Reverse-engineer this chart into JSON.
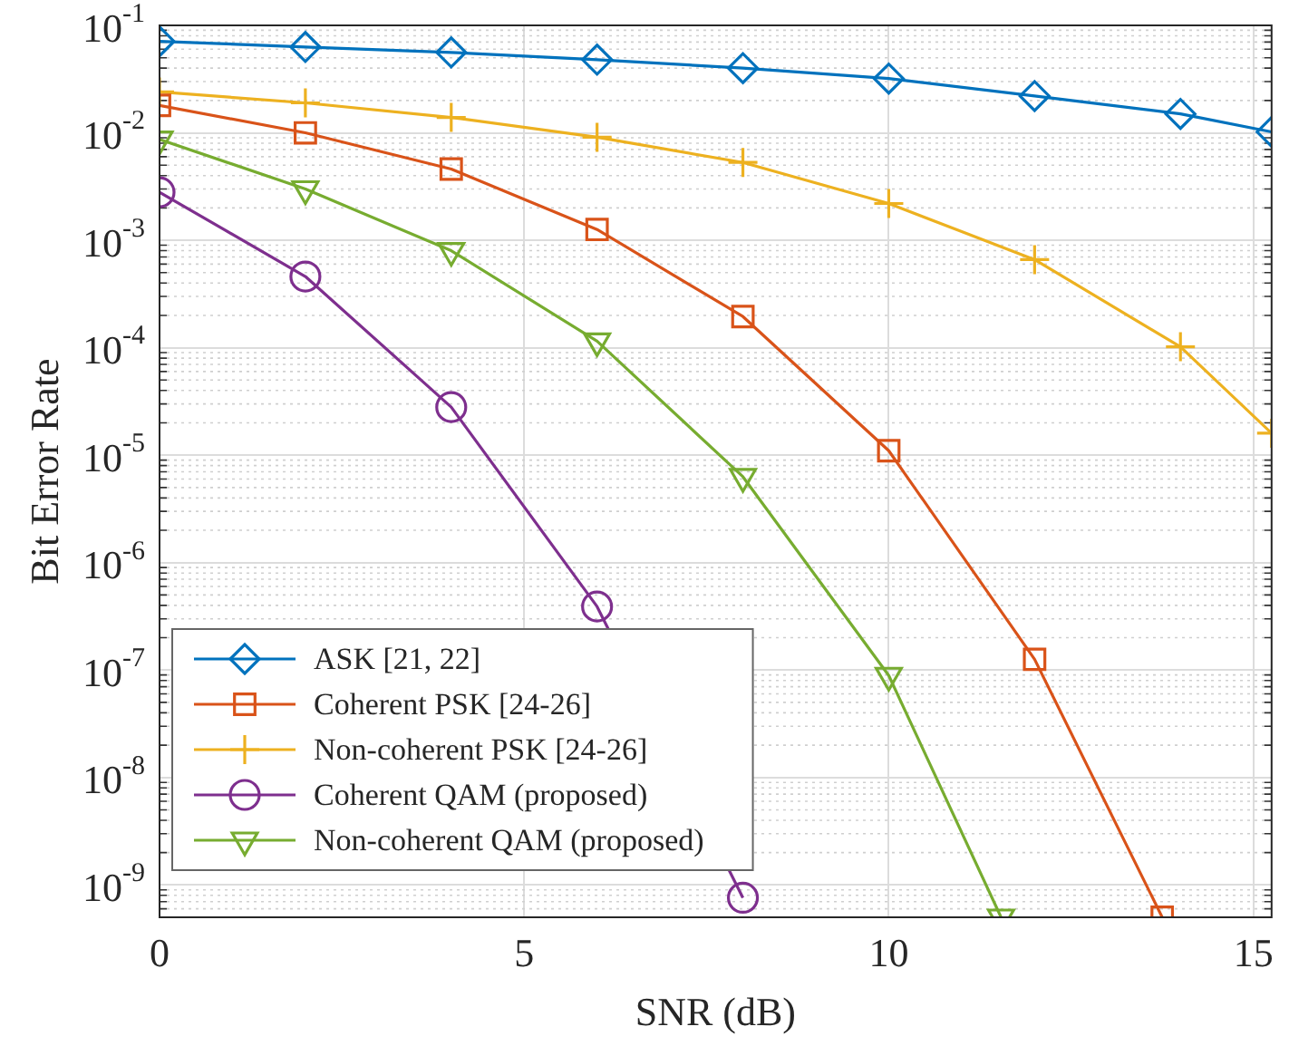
{
  "chart_data": {
    "type": "line",
    "xlabel": "SNR (dB)",
    "ylabel": "Bit Error Rate",
    "log": "y",
    "grid": true,
    "legend": "bottom left",
    "line_style": "solid",
    "xlim": [
      0,
      15.25
    ],
    "xticks": [
      0,
      5,
      10,
      15
    ],
    "ylim": [
      5e-10,
      0.1
    ],
    "yticks": [
      {
        "value": 1e-09,
        "label": "10$^{-9}$"
      },
      {
        "value": 1e-08,
        "label": "10$^{-8}$"
      },
      {
        "value": 1e-07,
        "label": "10$^{-7}$"
      },
      {
        "value": 1e-06,
        "label": "10$^{-6}$"
      },
      {
        "value": 1e-05,
        "label": "10$^{-5}$"
      },
      {
        "value": 0.0001,
        "label": "10$^{-4}$"
      },
      {
        "value": 0.001,
        "label": "10$^{-3}$"
      },
      {
        "value": 0.01,
        "label": "10$^{-2}$"
      },
      {
        "value": 0.1,
        "label": "10$^{-1}$"
      }
    ],
    "series": [
      {
        "name": "ASK [21, 22]",
        "color": "#0072bd",
        "marker": "diamond",
        "x": [
          0,
          2,
          4,
          6,
          8,
          10,
          12,
          14,
          15.25
        ],
        "values": [
          0.071,
          0.063,
          0.056,
          0.048,
          0.04,
          0.032,
          0.022,
          0.015,
          0.0102
        ]
      },
      {
        "name": "Coherent PSK [24-26]",
        "color": "#d95319",
        "marker": "square",
        "x": [
          0,
          2,
          4,
          6,
          8,
          10,
          12,
          13.75
        ],
        "values": [
          0.018,
          0.01,
          0.0046,
          0.00126,
          0.000195,
          1.1e-05,
          1.26e-07,
          5e-10
        ]
      },
      {
        "name": "Non-coherent PSK [24-26]",
        "color": "#edb120",
        "marker": "cross",
        "x": [
          0,
          2,
          4,
          6,
          8,
          10,
          12,
          14,
          15.25
        ],
        "values": [
          0.024,
          0.019,
          0.0139,
          0.0091,
          0.0053,
          0.0022,
          0.00066,
          0.000102,
          1.6e-05
        ]
      },
      {
        "name": "Coherent QAM (proposed)",
        "color": "#7e2f8e",
        "marker": "circle",
        "x": [
          0,
          2,
          4,
          6,
          8
        ],
        "values": [
          0.0028,
          0.00046,
          2.8e-05,
          3.9e-07,
          7.6e-10
        ]
      },
      {
        "name": "Non-coherent QAM (proposed)",
        "color": "#77ac30",
        "marker": "triangle",
        "x": [
          0,
          2,
          4,
          6,
          8,
          10,
          11.54
        ],
        "values": [
          0.0087,
          0.003,
          0.0008,
          0.000115,
          6.3e-06,
          8.9e-08,
          5e-10
        ]
      }
    ]
  }
}
